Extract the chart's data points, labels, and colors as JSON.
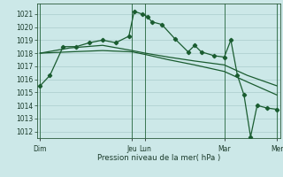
{
  "background_color": "#cce8e8",
  "grid_color": "#aacccc",
  "line_color": "#1a5c30",
  "ylabel": "Pression niveau de la mer( hPa )",
  "ylim": [
    1011.5,
    1021.8
  ],
  "yticks": [
    1012,
    1013,
    1014,
    1015,
    1016,
    1017,
    1018,
    1019,
    1020,
    1021
  ],
  "xlim": [
    0,
    37
  ],
  "xtick_labels": [
    "Dim",
    "Jeu",
    "Lun",
    "Mar",
    "Mer"
  ],
  "xtick_positions": [
    0.5,
    14.5,
    16.5,
    28.5,
    36.5
  ],
  "vlines": [
    0.5,
    14.5,
    16.5,
    28.5,
    36.5
  ],
  "series1": {
    "x": [
      0.5,
      2,
      4,
      6,
      8,
      10,
      12,
      14,
      14.8,
      16,
      16.8,
      17.5,
      19,
      21,
      23,
      24,
      25,
      27,
      28.5,
      29.5,
      30.5,
      31.5,
      32.5,
      33.5,
      35,
      36.5
    ],
    "y": [
      1015.5,
      1016.3,
      1018.5,
      1018.5,
      1018.8,
      1019.0,
      1018.8,
      1019.3,
      1021.2,
      1021.0,
      1020.8,
      1020.4,
      1020.2,
      1019.1,
      1018.1,
      1018.6,
      1018.1,
      1017.8,
      1017.7,
      1019.0,
      1016.3,
      1014.8,
      1011.6,
      1014.0,
      1013.8,
      1013.7
    ]
  },
  "series2": {
    "x": [
      0.5,
      5,
      10,
      14.5,
      16.5,
      20,
      24,
      28.5,
      32,
      36.5
    ],
    "y": [
      1018.0,
      1018.4,
      1018.6,
      1018.2,
      1018.0,
      1017.7,
      1017.4,
      1017.1,
      1016.3,
      1015.5
    ]
  },
  "series3": {
    "x": [
      0.5,
      5,
      10,
      14.5,
      16.5,
      20,
      24,
      28.5,
      32,
      36.5
    ],
    "y": [
      1018.0,
      1018.1,
      1018.2,
      1018.1,
      1017.9,
      1017.5,
      1017.1,
      1016.6,
      1015.8,
      1014.8
    ]
  }
}
